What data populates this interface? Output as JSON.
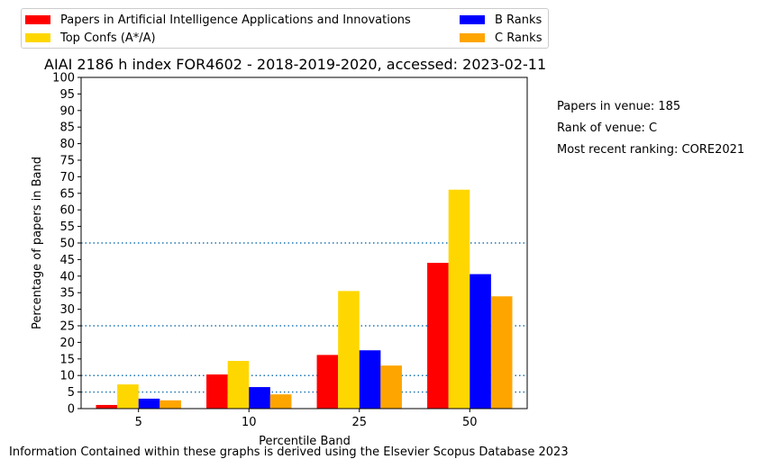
{
  "chart_data": {
    "type": "bar",
    "title": "AIAI 2186 h index FOR4602 - 2018-2019-2020, accessed: 2023-02-11",
    "xlabel": "Percentile Band",
    "ylabel": "Percentage of papers in Band",
    "categories": [
      "5",
      "10",
      "25",
      "50"
    ],
    "ylim": [
      0,
      100
    ],
    "yticks": [
      0,
      5,
      10,
      15,
      20,
      25,
      30,
      35,
      40,
      45,
      50,
      55,
      60,
      65,
      70,
      75,
      80,
      85,
      90,
      95,
      100
    ],
    "reference_lines": [
      5,
      10,
      25,
      50
    ],
    "reference_line_color": "#1f77b4",
    "series": [
      {
        "name": "Papers in Artificial Intelligence Applications and Innovations",
        "color": "#ff0000",
        "values": [
          1.1,
          10.3,
          16.2,
          44.0
        ]
      },
      {
        "name": "Top Confs (A*/A)",
        "color": "#ffd700",
        "values": [
          7.3,
          14.4,
          35.5,
          66.1
        ]
      },
      {
        "name": "B Ranks",
        "color": "#0000ff",
        "values": [
          3.0,
          6.5,
          17.6,
          40.6
        ]
      },
      {
        "name": "C Ranks",
        "color": "#ffa500",
        "values": [
          2.5,
          4.3,
          13.0,
          33.9
        ]
      }
    ],
    "legend": "top-left, outside plot, two columns"
  },
  "info": {
    "papers_in_venue": "Papers in venue: 185",
    "rank_of_venue": "Rank of venue: C",
    "recent_ranking": "Most recent ranking: CORE2021"
  },
  "footer": "Information Contained within these graphs is derived using the Elsevier Scopus Database 2023"
}
